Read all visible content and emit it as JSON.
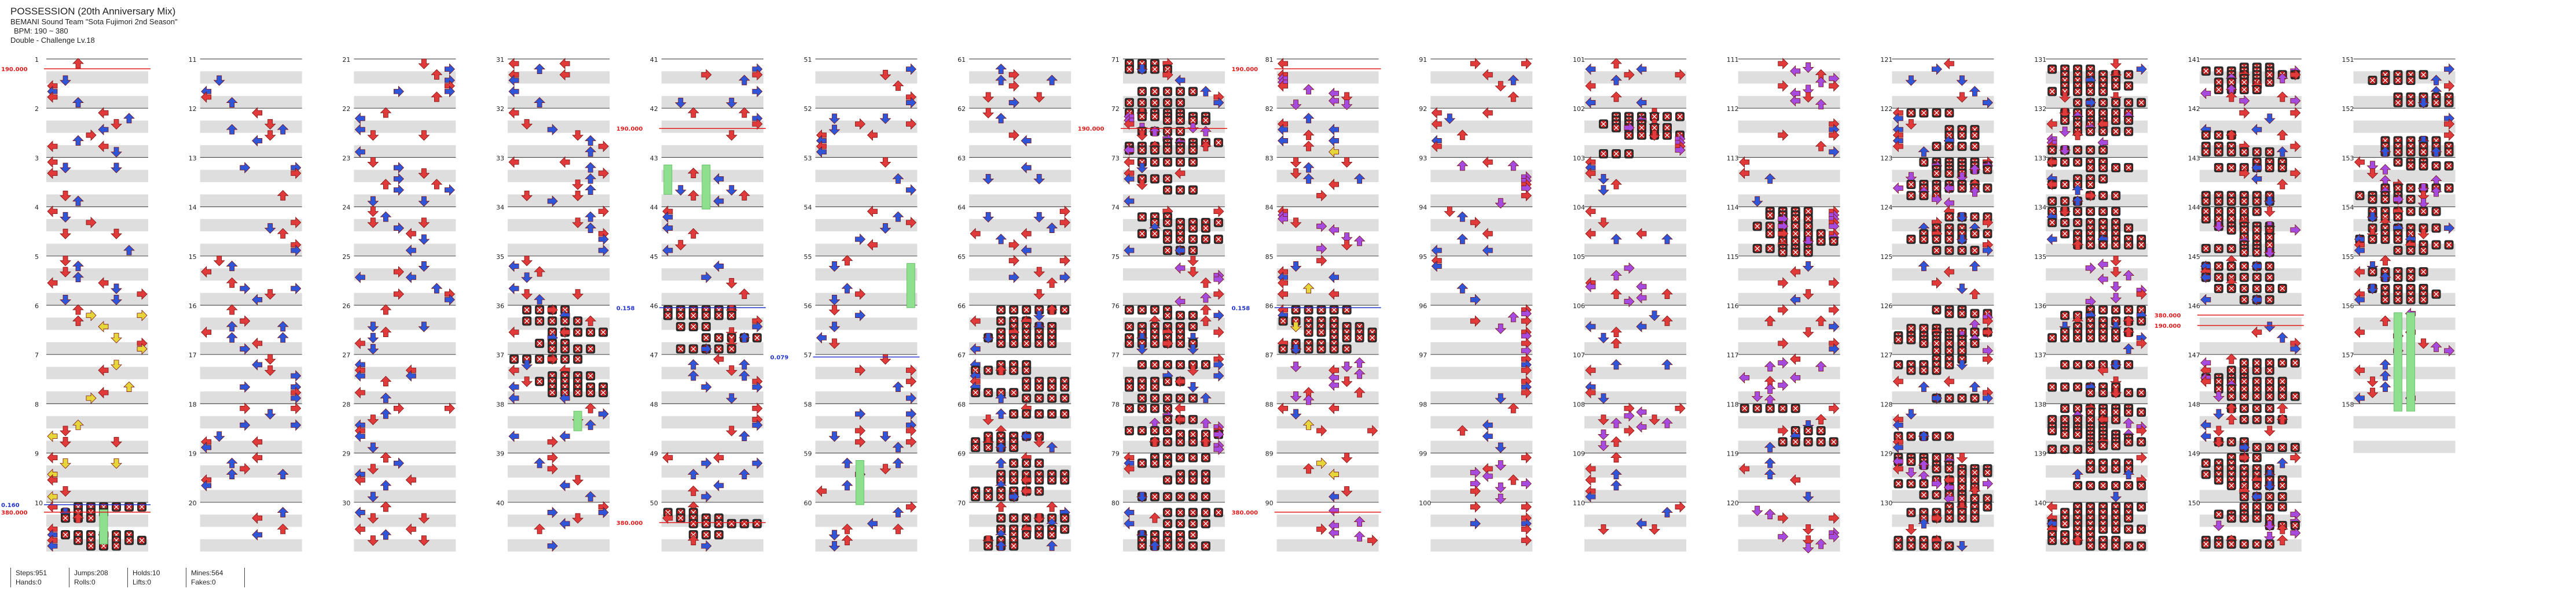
{
  "song": {
    "title": "POSSESSION (20th Anniversary Mix)",
    "artist": "BEMANI Sound Team \"Sota Fujimori 2nd Season\"",
    "bpm": "BPM: 190 ~ 380",
    "difficulty": "Double - Challenge Lv.18"
  },
  "stats": {
    "steps": "Steps:951",
    "hands": "Hands:0",
    "jumps": "Jumps:208",
    "rolls": "Rolls:0",
    "holds": "Holds:10",
    "lifts": "Lifts:0",
    "mines": "Mines:564",
    "fakes": "Fakes:0"
  },
  "colors": {
    "quarter": "#e03a3a",
    "eighth": "#2f56d8",
    "sixteenth": "#e7d63a",
    "twelfth": "#a64be0",
    "hold": "#8ee08e",
    "mine": "#c21d1d",
    "bpm_change": "#e21b1b",
    "stop": "#2233cc",
    "beat_band": "#dedede"
  },
  "bpm_markers": [
    {
      "measure": 1,
      "label": "190.000",
      "color": "red"
    },
    {
      "measure": 10,
      "label": "0.160",
      "color": "blue"
    },
    {
      "measure": 10,
      "label": "380.000",
      "color": "red"
    },
    {
      "measure": 42,
      "label": "190.000",
      "color": "red"
    },
    {
      "measure": 46,
      "label": "0.158",
      "color": "blue"
    },
    {
      "measure": 50,
      "label": "380.000",
      "color": "red"
    },
    {
      "measure": 57,
      "label": "0.079",
      "color": "blue"
    },
    {
      "measure": 72,
      "label": "190.000",
      "color": "red"
    },
    {
      "measure": 81,
      "label": "190.000",
      "color": "red"
    },
    {
      "measure": 86,
      "label": "0.158",
      "color": "blue"
    },
    {
      "measure": 90,
      "label": "380.000",
      "color": "red"
    },
    {
      "measure": 146,
      "label": "190.000",
      "color": "red"
    },
    {
      "measure": 146,
      "label": "380.000",
      "color": "red"
    }
  ],
  "measure_numbers": [
    "1",
    "2",
    "3",
    "4",
    "5",
    "6",
    "7",
    "8",
    "9",
    "10",
    "11",
    "12",
    "13",
    "14",
    "15",
    "16",
    "17",
    "18",
    "19",
    "20",
    "21",
    "22",
    "23",
    "24",
    "25",
    "26",
    "27",
    "28",
    "29",
    "30",
    "31",
    "32",
    "33",
    "34",
    "35",
    "36",
    "37",
    "38",
    "39",
    "40",
    "41",
    "42",
    "43",
    "44",
    "45",
    "46",
    "47",
    "48",
    "49",
    "50",
    "51",
    "52",
    "53",
    "54",
    "55",
    "56",
    "57",
    "58",
    "59",
    "60",
    "61",
    "62",
    "63",
    "64",
    "65",
    "66",
    "67",
    "68",
    "69",
    "70",
    "71",
    "72",
    "73",
    "74",
    "75",
    "76",
    "77",
    "78",
    "79",
    "80",
    "81",
    "82",
    "83",
    "84",
    "85",
    "86",
    "87",
    "88",
    "89",
    "90",
    "91",
    "92",
    "93",
    "94",
    "95",
    "96",
    "97",
    "98",
    "99",
    "100",
    "101",
    "102",
    "103",
    "104",
    "105",
    "106",
    "107",
    "108",
    "109",
    "110",
    "111",
    "112",
    "113",
    "114",
    "115",
    "116",
    "117",
    "118",
    "119",
    "120",
    "121",
    "122",
    "123",
    "124",
    "125",
    "126",
    "127",
    "128",
    "129",
    "130",
    "131",
    "132",
    "133",
    "134",
    "135",
    "136",
    "137",
    "138",
    "139",
    "140",
    "141",
    "142",
    "143",
    "144",
    "145",
    "146",
    "147",
    "148",
    "149",
    "150",
    "151",
    "152",
    "153",
    "154",
    "155",
    "156",
    "157",
    "158"
  ],
  "hold_segments": [
    {
      "measure": 10,
      "lane": 4,
      "span": 0.7
    },
    {
      "measure": 43,
      "lane": 0,
      "span": 0.6
    },
    {
      "measure": 43,
      "lane": 3,
      "span": 0.9
    },
    {
      "measure": 38,
      "lane": 5,
      "span": 0.4
    },
    {
      "measure": 55,
      "lane": 7,
      "span": 0.9
    },
    {
      "measure": 59,
      "lane": 3,
      "span": 0.9
    },
    {
      "measure": 156,
      "lane": 3,
      "span": 2.0
    },
    {
      "measure": 156,
      "lane": 4,
      "span": 2.0
    }
  ],
  "mine_measures": [
    10,
    36,
    37,
    46,
    50,
    66,
    67,
    68,
    69,
    70,
    71,
    72,
    73,
    74,
    76,
    77,
    78,
    79,
    80,
    86,
    102,
    114,
    118,
    122,
    123,
    124,
    126,
    127,
    128,
    129,
    130,
    131,
    132,
    133,
    134,
    136,
    137,
    138,
    139,
    140,
    141,
    142,
    143,
    144,
    145,
    147,
    148,
    149,
    150,
    151,
    152,
    153,
    154,
    155
  ]
}
